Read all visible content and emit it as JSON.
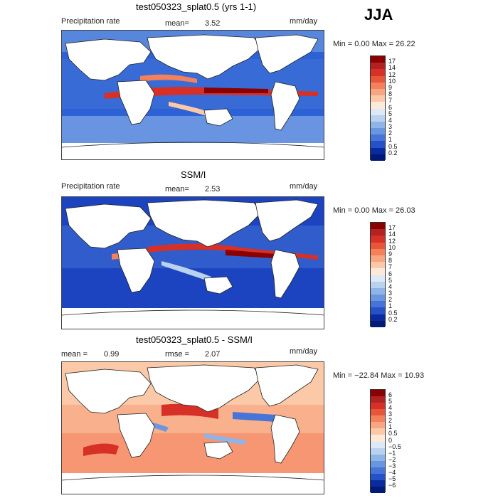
{
  "season": "JJA",
  "panels": [
    {
      "title": "test050323_splat0.5 (yrs 1-1)",
      "left_label": "Precipitation rate",
      "stat1_label": "mean=",
      "stat1_value": "3.52",
      "units": "mm/day",
      "minmax": "Min =    0.00 Max =   26.22",
      "colorbar_labels": [
        "17",
        "14",
        "12",
        "10",
        "9",
        "8",
        "7",
        "6",
        "5",
        "4",
        "3",
        "2",
        "1",
        "0.5",
        "0.2"
      ],
      "colors": [
        "#8b0000",
        "#b22222",
        "#d73027",
        "#e8563a",
        "#f4805c",
        "#f8a582",
        "#fbc8a8",
        "#fde9d8",
        "#dde9f7",
        "#b9d2f0",
        "#8fb5e8",
        "#6a96e0",
        "#4674d8",
        "#2652c8",
        "#0a2aa0",
        "#001a78"
      ]
    },
    {
      "title": "SSM/I",
      "left_label": "Precipitation rate",
      "stat1_label": "mean=",
      "stat1_value": "2.53",
      "units": "mm/day",
      "minmax": "Min =    0.00 Max =   26.03",
      "colorbar_labels": [
        "17",
        "14",
        "12",
        "10",
        "9",
        "8",
        "7",
        "6",
        "5",
        "4",
        "3",
        "2",
        "1",
        "0.5",
        "0.2"
      ],
      "colors": [
        "#8b0000",
        "#b22222",
        "#d73027",
        "#e8563a",
        "#f4805c",
        "#f8a582",
        "#fbc8a8",
        "#fde9d8",
        "#dde9f7",
        "#b9d2f0",
        "#8fb5e8",
        "#6a96e0",
        "#4674d8",
        "#2652c8",
        "#0a2aa0",
        "#001a78"
      ]
    },
    {
      "title": "test050323_splat0.5 - SSM/I",
      "left_label": "mean =",
      "stat1_value": "0.99",
      "stat2_label": "rmse =",
      "stat2_value": "2.07",
      "units": "mm/day",
      "minmax": "Min = −22.84 Max =   10.93",
      "colorbar_labels": [
        "6",
        "5",
        "4",
        "3",
        "2",
        "1",
        "0.5",
        "0",
        "−0.5",
        "−1",
        "−2",
        "−3",
        "−4",
        "−5",
        "−6"
      ],
      "colors": [
        "#8b0000",
        "#b22222",
        "#d73027",
        "#e8563a",
        "#f4805c",
        "#f8a582",
        "#fbc8a8",
        "#fde9d8",
        "#dde9f7",
        "#b9d2f0",
        "#8fb5e8",
        "#6a96e0",
        "#4674d8",
        "#2652c8",
        "#0a2aa0",
        "#001a78"
      ]
    }
  ],
  "chart_data": [
    {
      "type": "heatmap",
      "title": "test050323_splat0.5 (yrs 1-1)",
      "variable": "Precipitation rate",
      "units": "mm/day",
      "mean": 3.52,
      "min": 0.0,
      "max": 26.22,
      "levels": [
        0.2,
        0.5,
        1,
        2,
        3,
        4,
        5,
        6,
        7,
        8,
        9,
        10,
        12,
        14,
        17
      ]
    },
    {
      "type": "heatmap",
      "title": "SSM/I",
      "variable": "Precipitation rate",
      "units": "mm/day",
      "mean": 2.53,
      "min": 0.0,
      "max": 26.03,
      "levels": [
        0.2,
        0.5,
        1,
        2,
        3,
        4,
        5,
        6,
        7,
        8,
        9,
        10,
        12,
        14,
        17
      ]
    },
    {
      "type": "heatmap",
      "title": "test050323_splat0.5 - SSM/I",
      "units": "mm/day",
      "mean": 0.99,
      "rmse": 2.07,
      "min": -22.84,
      "max": 10.93,
      "levels": [
        -6,
        -5,
        -4,
        -3,
        -2,
        -1,
        -0.5,
        0,
        0.5,
        1,
        2,
        3,
        4,
        5,
        6
      ]
    }
  ]
}
